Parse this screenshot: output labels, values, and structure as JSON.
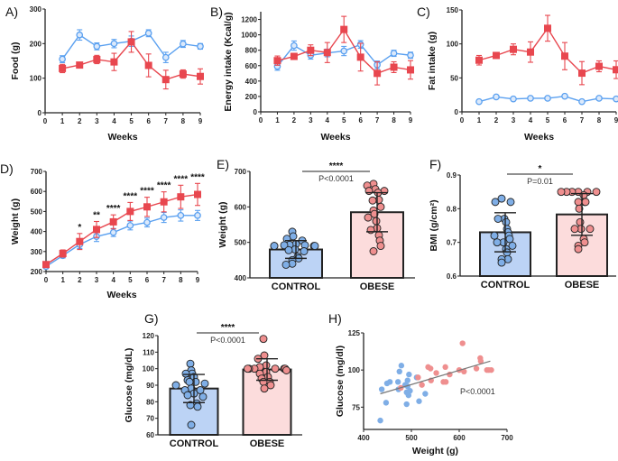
{
  "colors": {
    "control_line": "#5aa0f0",
    "obese_line": "#e8474f",
    "control_bar": "#bcd3f5",
    "obese_bar": "#fcdcdc",
    "control_dot": "#7faee6",
    "obese_dot": "#ef8f8f"
  },
  "chart_data": [
    {
      "panel": "A)",
      "type": "line",
      "xlabel": "Weeks",
      "ylabel": "Food (g)",
      "xlim": [
        0,
        9
      ],
      "ylim": [
        0,
        300
      ],
      "xticks": [
        0,
        1,
        2,
        3,
        4,
        5,
        6,
        7,
        8,
        9
      ],
      "yticks": [
        0,
        100,
        200,
        300
      ],
      "grid": false,
      "series": [
        {
          "group": "control",
          "marker": "open-circle",
          "x": [
            1,
            2,
            3,
            4,
            5,
            6,
            7,
            8,
            9
          ],
          "values": [
            155,
            225,
            192,
            200,
            207,
            230,
            160,
            199,
            192
          ],
          "errors": [
            10,
            15,
            10,
            12,
            15,
            10,
            15,
            10,
            8
          ]
        },
        {
          "group": "obese",
          "marker": "square",
          "x": [
            1,
            2,
            3,
            4,
            5,
            6,
            7,
            8,
            9
          ],
          "values": [
            128,
            138,
            154,
            147,
            205,
            137,
            96,
            112,
            105
          ],
          "errors": [
            12,
            6,
            12,
            25,
            30,
            33,
            27,
            12,
            22
          ]
        }
      ]
    },
    {
      "panel": "B)",
      "type": "line",
      "xlabel": "Weeks",
      "ylabel": "Energy intake (Kcal/g)",
      "xlim": [
        0,
        9
      ],
      "ylim": [
        0,
        1300
      ],
      "xticks": [
        0,
        1,
        2,
        3,
        4,
        5,
        6,
        7,
        8,
        9
      ],
      "yticks": [
        0,
        200,
        400,
        600,
        800,
        1000,
        1200
      ],
      "grid": false,
      "series": [
        {
          "group": "control",
          "marker": "open-circle",
          "x": [
            1,
            2,
            3,
            4,
            5,
            6,
            7,
            8,
            9
          ],
          "values": [
            590,
            860,
            735,
            765,
            790,
            875,
            610,
            760,
            735
          ],
          "errors": [
            50,
            60,
            50,
            50,
            60,
            50,
            50,
            40,
            40
          ]
        },
        {
          "group": "obese",
          "marker": "square",
          "x": [
            1,
            2,
            3,
            4,
            5,
            6,
            7,
            8,
            9
          ],
          "values": [
            665,
            720,
            800,
            770,
            1070,
            710,
            500,
            580,
            545
          ],
          "errors": [
            60,
            40,
            70,
            130,
            170,
            180,
            150,
            70,
            120
          ]
        }
      ]
    },
    {
      "panel": "C)",
      "type": "line",
      "xlabel": "Weeks",
      "ylabel": "Fat intake (g)",
      "xlim": [
        0,
        9
      ],
      "ylim": [
        0,
        150
      ],
      "xticks": [
        0,
        1,
        2,
        3,
        4,
        5,
        6,
        7,
        8,
        9
      ],
      "yticks": [
        0,
        50,
        100,
        150
      ],
      "grid": false,
      "series": [
        {
          "group": "control",
          "marker": "open-circle",
          "x": [
            1,
            2,
            3,
            4,
            5,
            6,
            7,
            8,
            9
          ],
          "values": [
            15,
            22,
            19,
            20,
            20,
            23,
            15,
            20,
            19
          ],
          "errors": [
            1,
            1,
            1,
            1,
            1,
            1,
            1,
            1,
            1
          ]
        },
        {
          "group": "obese",
          "marker": "square",
          "x": [
            1,
            2,
            3,
            4,
            5,
            6,
            7,
            8,
            9
          ],
          "values": [
            76,
            83,
            92,
            88,
            123,
            82,
            57,
            67,
            62
          ],
          "errors": [
            7,
            4,
            8,
            15,
            19,
            20,
            17,
            8,
            13
          ]
        }
      ]
    },
    {
      "panel": "D)",
      "type": "line",
      "xlabel": "Weeks",
      "ylabel": "Weight (g)",
      "xlim": [
        0,
        9
      ],
      "ylim": [
        200,
        700
      ],
      "xticks": [
        0,
        1,
        2,
        3,
        4,
        5,
        6,
        7,
        8,
        9
      ],
      "yticks": [
        200,
        300,
        400,
        500,
        600,
        700
      ],
      "grid": false,
      "series": [
        {
          "group": "control",
          "marker": "open-circle",
          "x": [
            0,
            1,
            2,
            3,
            4,
            5,
            6,
            7,
            8,
            9
          ],
          "values": [
            225,
            280,
            335,
            375,
            395,
            430,
            445,
            470,
            480,
            480
          ],
          "errors": [
            10,
            12,
            20,
            25,
            20,
            22,
            22,
            25,
            28,
            25
          ]
        },
        {
          "group": "obese",
          "marker": "square",
          "x": [
            0,
            1,
            2,
            3,
            4,
            5,
            6,
            7,
            8,
            9
          ],
          "values": [
            235,
            290,
            350,
            410,
            448,
            500,
            523,
            548,
            573,
            585
          ],
          "errors": [
            10,
            18,
            40,
            40,
            35,
            45,
            48,
            50,
            58,
            55
          ]
        }
      ],
      "annotations": [
        {
          "x": 2,
          "text": "*"
        },
        {
          "x": 3,
          "text": "**"
        },
        {
          "x": 4,
          "text": "****"
        },
        {
          "x": 5,
          "text": "****"
        },
        {
          "x": 6,
          "text": "****"
        },
        {
          "x": 7,
          "text": "****"
        },
        {
          "x": 8,
          "text": "****"
        },
        {
          "x": 9,
          "text": "****"
        }
      ]
    },
    {
      "panel": "E)",
      "type": "bar",
      "xlabel": "",
      "ylabel": "Weight (g)",
      "ylim": [
        400,
        700
      ],
      "yticks": [
        400,
        500,
        600,
        700
      ],
      "grid": false,
      "categories": [
        "CONTROL",
        "OBESE"
      ],
      "values": [
        480,
        585
      ],
      "errors": [
        25,
        55
      ],
      "points": [
        [
          530,
          517,
          510,
          505,
          495,
          493,
          492,
          492,
          490,
          490,
          490,
          490,
          480,
          478,
          475,
          460,
          455,
          450,
          440,
          437
        ],
        [
          665,
          660,
          650,
          645,
          645,
          640,
          620,
          618,
          600,
          590,
          580,
          570,
          560,
          540,
          535,
          520,
          505,
          490,
          475
        ]
      ],
      "significance": {
        "stars": "****",
        "p": "P<0.0001"
      }
    },
    {
      "panel": "F)",
      "type": "bar",
      "xlabel": "",
      "ylabel": "BMI (g/cm²)",
      "ylim": [
        0.6,
        0.9
      ],
      "yticks": [
        0.6,
        0.7,
        0.8,
        0.9
      ],
      "grid": false,
      "categories": [
        "CONTROL",
        "OBESE"
      ],
      "values": [
        0.73,
        0.783
      ],
      "errors": [
        0.058,
        0.062
      ],
      "points": [
        [
          0.83,
          0.82,
          0.82,
          0.77,
          0.77,
          0.76,
          0.74,
          0.73,
          0.72,
          0.72,
          0.71,
          0.7,
          0.7,
          0.69,
          0.68,
          0.67,
          0.65,
          0.65,
          0.64
        ],
        [
          0.85,
          0.85,
          0.85,
          0.85,
          0.85,
          0.85,
          0.84,
          0.82,
          0.82,
          0.82,
          0.8,
          0.76,
          0.74,
          0.74,
          0.74,
          0.71,
          0.7,
          0.69,
          0.68
        ]
      ],
      "significance": {
        "stars": "*",
        "p": "P=0.01"
      }
    },
    {
      "panel": "G)",
      "type": "bar",
      "xlabel": "",
      "ylabel": "Glucose (mg/dL)",
      "ylim": [
        60,
        120
      ],
      "yticks": [
        60,
        70,
        80,
        90,
        100,
        110,
        120
      ],
      "grid": false,
      "categories": [
        "CONTROL",
        "OBESE"
      ],
      "values": [
        88,
        99.5
      ],
      "errors": [
        8.5,
        6.5
      ],
      "points": [
        [
          103,
          99,
          97,
          97,
          95,
          93,
          92,
          92,
          91,
          90,
          88,
          87,
          87,
          85,
          84,
          83,
          79,
          78,
          77,
          66
        ],
        [
          118,
          108,
          106,
          102,
          101,
          100,
          100,
          100,
          100,
          100,
          100,
          99,
          98,
          97,
          95,
          94,
          92,
          92,
          90,
          88
        ]
      ],
      "significance": {
        "stars": "****",
        "p": "P<0.0001"
      }
    },
    {
      "panel": "H)",
      "type": "scatter",
      "xlabel": "Weight (g)",
      "ylabel": "Glucose (mg/dl)",
      "xlim": [
        400,
        700
      ],
      "ylim": [
        60,
        125
      ],
      "xticks": [
        400,
        500,
        600,
        700
      ],
      "yticks": [
        75,
        100,
        125
      ],
      "grid": false,
      "series": [
        {
          "group": "control",
          "points": [
            [
              435,
              66
            ],
            [
              438,
              87
            ],
            [
              447,
              78
            ],
            [
              449,
              91
            ],
            [
              455,
              92
            ],
            [
              472,
              92
            ],
            [
              473,
              87
            ],
            [
              475,
              99
            ],
            [
              479,
              103
            ],
            [
              487,
              90
            ],
            [
              490,
              77
            ],
            [
              490,
              85
            ],
            [
              492,
              89
            ],
            [
              492,
              93
            ],
            [
              494,
              83
            ],
            [
              495,
              97
            ],
            [
              497,
              86
            ],
            [
              511,
              95
            ],
            [
              516,
              79
            ],
            [
              529,
              84
            ]
          ]
        },
        {
          "group": "obese",
          "points": [
            [
              478,
              88
            ],
            [
              514,
              95
            ],
            [
              522,
              90
            ],
            [
              535,
              102
            ],
            [
              540,
              101
            ],
            [
              541,
              93
            ],
            [
              552,
              98
            ],
            [
              567,
              92
            ],
            [
              572,
              92
            ],
            [
              571,
              102
            ],
            [
              580,
              97
            ],
            [
              600,
              100
            ],
            [
              607,
              118
            ],
            [
              610,
              99
            ],
            [
              636,
              101
            ],
            [
              644,
              108
            ],
            [
              645,
              106
            ],
            [
              658,
              100
            ],
            [
              662,
              100
            ],
            [
              667,
              100
            ]
          ]
        }
      ],
      "regression": {
        "x": [
          435,
          665
        ],
        "y": [
          84,
          106
        ]
      },
      "annotation": "P<0.0001"
    }
  ]
}
